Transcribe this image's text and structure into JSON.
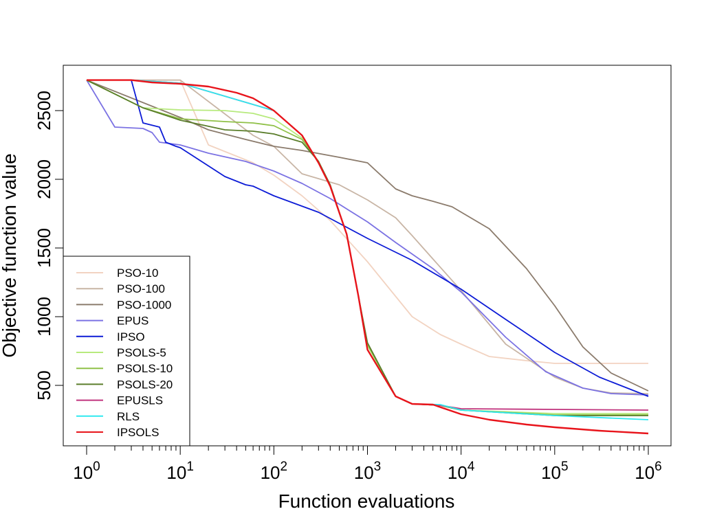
{
  "chart_data": {
    "type": "line",
    "title": "",
    "xlabel": "Function evaluations",
    "ylabel": "Objective function value",
    "x_scale": "log10",
    "xlim": [
      1,
      1000000
    ],
    "ylim": [
      60,
      2830
    ],
    "x_ticks": [
      {
        "value": 1,
        "base": "10",
        "exp": "0"
      },
      {
        "value": 10,
        "base": "10",
        "exp": "1"
      },
      {
        "value": 100,
        "base": "10",
        "exp": "2"
      },
      {
        "value": 1000,
        "base": "10",
        "exp": "3"
      },
      {
        "value": 10000,
        "base": "10",
        "exp": "4"
      },
      {
        "value": 100000,
        "base": "10",
        "exp": "5"
      },
      {
        "value": 1000000,
        "base": "10",
        "exp": "6"
      }
    ],
    "y_ticks": [
      {
        "value": 500,
        "label": "500"
      },
      {
        "value": 1000,
        "label": "1000"
      },
      {
        "value": 1500,
        "label": "1500"
      },
      {
        "value": 2000,
        "label": "2000"
      },
      {
        "value": 2500,
        "label": "2500"
      }
    ],
    "legend_position": "bottom-left",
    "series": [
      {
        "name": "PSO-10",
        "color": "#f2d3c1",
        "points": [
          [
            1,
            2722
          ],
          [
            10,
            2722
          ],
          [
            20,
            2250
          ],
          [
            60,
            2120
          ],
          [
            100,
            2030
          ],
          [
            200,
            1880
          ],
          [
            400,
            1700
          ],
          [
            1000,
            1400
          ],
          [
            3000,
            1000
          ],
          [
            6000,
            870
          ],
          [
            10000,
            800
          ],
          [
            20000,
            710
          ],
          [
            50000,
            680
          ],
          [
            100000,
            660
          ],
          [
            1000000,
            660
          ]
        ]
      },
      {
        "name": "PSO-100",
        "color": "#c8b5a5",
        "points": [
          [
            1,
            2722
          ],
          [
            10,
            2722
          ],
          [
            60,
            2320
          ],
          [
            100,
            2240
          ],
          [
            200,
            2040
          ],
          [
            500,
            1960
          ],
          [
            1000,
            1850
          ],
          [
            2000,
            1720
          ],
          [
            3000,
            1590
          ],
          [
            5000,
            1420
          ],
          [
            10000,
            1190
          ],
          [
            30000,
            800
          ],
          [
            100000,
            560
          ],
          [
            200000,
            480
          ],
          [
            400000,
            445
          ],
          [
            1000000,
            440
          ]
        ]
      },
      {
        "name": "PSO-1000",
        "color": "#8b7b6c",
        "points": [
          [
            1,
            2722
          ],
          [
            10,
            2450
          ],
          [
            20,
            2360
          ],
          [
            50,
            2290
          ],
          [
            100,
            2240
          ],
          [
            200,
            2210
          ],
          [
            500,
            2160
          ],
          [
            1000,
            2120
          ],
          [
            2000,
            1930
          ],
          [
            3000,
            1880
          ],
          [
            5000,
            1840
          ],
          [
            8000,
            1800
          ],
          [
            20000,
            1640
          ],
          [
            50000,
            1350
          ],
          [
            100000,
            1080
          ],
          [
            200000,
            780
          ],
          [
            400000,
            590
          ],
          [
            1000000,
            460
          ]
        ]
      },
      {
        "name": "EPUS",
        "color": "#7b72e3",
        "points": [
          [
            1,
            2722
          ],
          [
            2,
            2380
          ],
          [
            4,
            2370
          ],
          [
            5,
            2340
          ],
          [
            6,
            2270
          ],
          [
            10,
            2250
          ],
          [
            20,
            2190
          ],
          [
            50,
            2130
          ],
          [
            100,
            2060
          ],
          [
            200,
            1970
          ],
          [
            400,
            1860
          ],
          [
            1000,
            1690
          ],
          [
            2000,
            1540
          ],
          [
            5000,
            1350
          ],
          [
            10000,
            1180
          ],
          [
            30000,
            850
          ],
          [
            80000,
            600
          ],
          [
            200000,
            480
          ],
          [
            400000,
            440
          ],
          [
            1000000,
            430
          ]
        ]
      },
      {
        "name": "IPSO",
        "color": "#0c1bd6",
        "points": [
          [
            1,
            2722
          ],
          [
            3,
            2722
          ],
          [
            4,
            2410
          ],
          [
            6,
            2380
          ],
          [
            7,
            2270
          ],
          [
            9,
            2240
          ],
          [
            10,
            2230
          ],
          [
            30,
            2020
          ],
          [
            50,
            1960
          ],
          [
            60,
            1950
          ],
          [
            100,
            1880
          ],
          [
            300,
            1760
          ],
          [
            1000,
            1570
          ],
          [
            3000,
            1410
          ],
          [
            10000,
            1200
          ],
          [
            30000,
            980
          ],
          [
            100000,
            740
          ],
          [
            300000,
            560
          ],
          [
            1000000,
            420
          ]
        ]
      },
      {
        "name": "PSOLS-5",
        "color": "#b7ea7d",
        "points": [
          [
            1,
            2722
          ],
          [
            4,
            2520
          ],
          [
            10,
            2505
          ],
          [
            30,
            2500
          ],
          [
            60,
            2480
          ],
          [
            100,
            2440
          ],
          [
            200,
            2300
          ],
          [
            300,
            2130
          ],
          [
            400,
            1950
          ],
          [
            600,
            1600
          ],
          [
            800,
            1150
          ],
          [
            1000,
            790
          ],
          [
            2000,
            420
          ],
          [
            3000,
            365
          ],
          [
            6000,
            355
          ],
          [
            10000,
            320
          ],
          [
            100000,
            295
          ],
          [
            1000000,
            295
          ]
        ]
      },
      {
        "name": "PSOLS-10",
        "color": "#8fc047",
        "points": [
          [
            1,
            2722
          ],
          [
            4,
            2520
          ],
          [
            10,
            2440
          ],
          [
            30,
            2420
          ],
          [
            60,
            2410
          ],
          [
            100,
            2390
          ],
          [
            200,
            2290
          ],
          [
            300,
            2130
          ],
          [
            400,
            1950
          ],
          [
            600,
            1600
          ],
          [
            800,
            1150
          ],
          [
            1000,
            800
          ],
          [
            2000,
            420
          ],
          [
            3000,
            365
          ],
          [
            6000,
            355
          ],
          [
            10000,
            320
          ],
          [
            100000,
            285
          ],
          [
            1000000,
            285
          ]
        ]
      },
      {
        "name": "PSOLS-20",
        "color": "#5a7d2a",
        "points": [
          [
            1,
            2722
          ],
          [
            4,
            2520
          ],
          [
            10,
            2430
          ],
          [
            30,
            2360
          ],
          [
            60,
            2350
          ],
          [
            100,
            2330
          ],
          [
            200,
            2270
          ],
          [
            300,
            2130
          ],
          [
            400,
            1960
          ],
          [
            600,
            1600
          ],
          [
            800,
            1150
          ],
          [
            1000,
            810
          ],
          [
            2000,
            420
          ],
          [
            3000,
            365
          ],
          [
            6000,
            355
          ],
          [
            10000,
            320
          ],
          [
            100000,
            280
          ],
          [
            1000000,
            280
          ]
        ]
      },
      {
        "name": "EPUSLS",
        "color": "#c0347d",
        "points": [
          [
            1,
            2722
          ],
          [
            3,
            2722
          ],
          [
            10,
            2700
          ],
          [
            100,
            2500
          ],
          [
            200,
            2320
          ],
          [
            300,
            2120
          ],
          [
            400,
            1950
          ],
          [
            600,
            1600
          ],
          [
            800,
            1150
          ],
          [
            1000,
            760
          ],
          [
            2000,
            420
          ],
          [
            3000,
            365
          ],
          [
            6000,
            355
          ],
          [
            10000,
            330
          ],
          [
            100000,
            325
          ],
          [
            1000000,
            320
          ]
        ]
      },
      {
        "name": "RLS",
        "color": "#2ee8ef",
        "points": [
          [
            1,
            2722
          ],
          [
            3,
            2722
          ],
          [
            10,
            2700
          ],
          [
            100,
            2500
          ],
          [
            200,
            2320
          ],
          [
            300,
            2120
          ],
          [
            400,
            1950
          ],
          [
            600,
            1600
          ],
          [
            800,
            1150
          ],
          [
            1000,
            760
          ],
          [
            2000,
            420
          ],
          [
            3000,
            365
          ],
          [
            6000,
            360
          ],
          [
            10000,
            320
          ],
          [
            100000,
            280
          ],
          [
            1000000,
            250
          ]
        ]
      },
      {
        "name": "IPSOLS",
        "color": "#e8141b",
        "points": [
          [
            1,
            2722
          ],
          [
            3,
            2722
          ],
          [
            5,
            2705
          ],
          [
            10,
            2695
          ],
          [
            20,
            2675
          ],
          [
            40,
            2630
          ],
          [
            60,
            2590
          ],
          [
            100,
            2500
          ],
          [
            200,
            2320
          ],
          [
            300,
            2120
          ],
          [
            400,
            1950
          ],
          [
            600,
            1600
          ],
          [
            800,
            1150
          ],
          [
            1000,
            760
          ],
          [
            2000,
            420
          ],
          [
            3000,
            365
          ],
          [
            5000,
            360
          ],
          [
            10000,
            290
          ],
          [
            20000,
            250
          ],
          [
            50000,
            215
          ],
          [
            100000,
            195
          ],
          [
            300000,
            170
          ],
          [
            1000000,
            150
          ]
        ]
      }
    ]
  }
}
